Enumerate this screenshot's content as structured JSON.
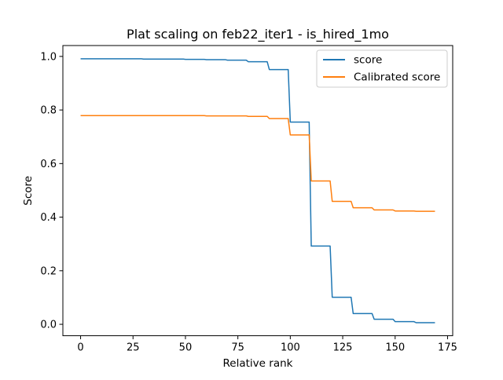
{
  "chart_data": {
    "type": "line",
    "title": "Plat scaling on feb22_iter1 - is_hired_1mo",
    "xlabel": "Relative rank",
    "ylabel": "Score",
    "xlim": [
      -8.45,
      177.45
    ],
    "ylim": [
      -0.0426,
      1.0406
    ],
    "xticks": [
      0,
      25,
      50,
      75,
      100,
      125,
      150,
      175
    ],
    "xtick_labels": [
      "0",
      "25",
      "50",
      "75",
      "100",
      "125",
      "150",
      "175"
    ],
    "yticks": [
      0.0,
      0.2,
      0.4,
      0.6,
      0.8,
      1.0
    ],
    "ytick_labels": [
      "0.0",
      "0.2",
      "0.4",
      "0.6",
      "0.8",
      "1.0"
    ],
    "grid": false,
    "legend_position": "upper right",
    "series": [
      {
        "name": "score",
        "color": "#1f77b4",
        "x": [
          0,
          9,
          10,
          19,
          20,
          29,
          30,
          39,
          40,
          49,
          50,
          59,
          60,
          69,
          70,
          79,
          80,
          89,
          90,
          99,
          100,
          109,
          110,
          119,
          120,
          129,
          130,
          139,
          140,
          149,
          150,
          159,
          160,
          169
        ],
        "y": [
          0.991,
          0.991,
          0.991,
          0.991,
          0.991,
          0.991,
          0.99,
          0.99,
          0.99,
          0.99,
          0.989,
          0.989,
          0.988,
          0.988,
          0.986,
          0.986,
          0.98,
          0.98,
          0.951,
          0.951,
          0.755,
          0.755,
          0.292,
          0.292,
          0.101,
          0.101,
          0.04,
          0.04,
          0.019,
          0.019,
          0.01,
          0.01,
          0.006,
          0.006
        ]
      },
      {
        "name": "Calibrated score",
        "color": "#ff7f0e",
        "x": [
          0,
          9,
          10,
          19,
          20,
          29,
          30,
          39,
          40,
          49,
          50,
          59,
          60,
          69,
          70,
          79,
          80,
          89,
          90,
          99,
          100,
          109,
          110,
          119,
          120,
          129,
          130,
          139,
          140,
          149,
          150,
          159,
          160,
          169
        ],
        "y": [
          0.779,
          0.779,
          0.779,
          0.779,
          0.779,
          0.779,
          0.779,
          0.779,
          0.779,
          0.779,
          0.779,
          0.779,
          0.778,
          0.778,
          0.778,
          0.778,
          0.776,
          0.776,
          0.768,
          0.768,
          0.707,
          0.707,
          0.535,
          0.535,
          0.459,
          0.459,
          0.435,
          0.435,
          0.427,
          0.427,
          0.423,
          0.423,
          0.422,
          0.422
        ]
      }
    ]
  }
}
